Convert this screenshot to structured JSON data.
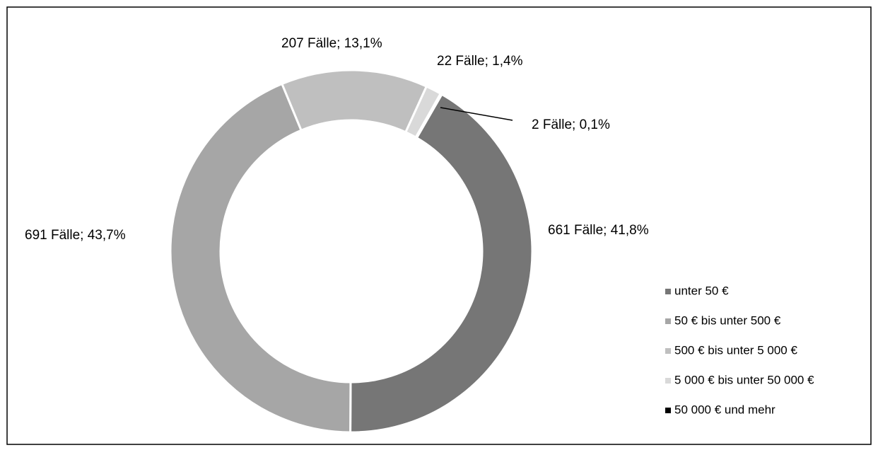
{
  "chart_data": {
    "type": "donut",
    "categories": [
      "unter 50 €",
      "50 € bis unter 500 €",
      "500 € bis unter 5 000 €",
      "5 000 € bis unter 50 000 €",
      "50 000 € und mehr"
    ],
    "values": [
      661,
      691,
      207,
      22,
      2
    ],
    "value_labels": [
      "661 Fälle; 41,8%",
      "691 Fälle; 43,7%",
      "207 Fälle; 13,1%",
      "22 Fälle; 1,4%",
      "2 Fälle; 0,1%"
    ],
    "colors": [
      "#767676",
      "#a6a6a6",
      "#bfbfbf",
      "#d9d9d9",
      "#000000"
    ],
    "legend": "right"
  }
}
